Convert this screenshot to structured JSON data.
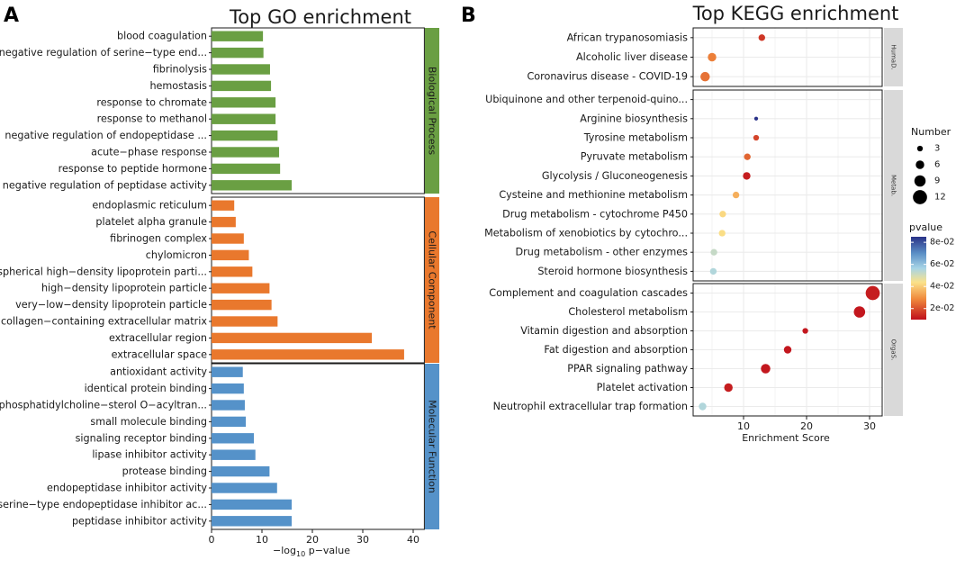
{
  "panel_labels": {
    "a": "A",
    "b": "B"
  },
  "colors": {
    "bp": "#6a9f43",
    "cc": "#e9782d",
    "mf": "#5592c9",
    "strip_bg": "#d9d9d9",
    "grid": "#ebebeb"
  },
  "chart_data": [
    {
      "type": "bar",
      "orientation": "horizontal",
      "title": "Top GO enrichment",
      "xlabel_prefix": "−log",
      "xlabel_sub": "10",
      "xlabel_suffix": " p−value",
      "xlim": [
        0,
        44
      ],
      "xticks": [
        0,
        10,
        20,
        30,
        40
      ],
      "groups": [
        {
          "name": "Biological Process",
          "color": "#6a9f43",
          "categories": [
            "blood coagulation",
            "negative regulation of serine−type end...",
            "fibrinolysis",
            "hemostasis",
            "response to chromate",
            "response to methanol",
            "negative regulation of endopeptidase ...",
            "acute−phase response",
            "response to peptide hormone",
            "negative regulation of peptidase activity"
          ],
          "values": [
            10.2,
            10.3,
            11.6,
            11.8,
            12.7,
            12.7,
            13.1,
            13.4,
            13.6,
            15.9
          ]
        },
        {
          "name": "Cellular Component",
          "color": "#e9782d",
          "categories": [
            "endoplasmic reticulum",
            "platelet alpha granule",
            "fibrinogen complex",
            "chylomicron",
            "spherical high−density lipoprotein parti...",
            "high−density lipoprotein particle",
            "very−low−density lipoprotein particle",
            "collagen−containing extracellular matrix",
            "extracellular region",
            "extracellular space"
          ],
          "values": [
            4.5,
            4.8,
            6.4,
            7.4,
            8.1,
            11.5,
            11.9,
            13.1,
            31.8,
            38.2
          ]
        },
        {
          "name": "Molecular Function",
          "color": "#5592c9",
          "categories": [
            "antioxidant activity",
            "identical protein binding",
            "phosphatidylcholine−sterol O−acyltran...",
            "small molecule binding",
            "signaling receptor binding",
            "lipase inhibitor activity",
            "protease binding",
            "endopeptidase inhibitor activity",
            "serine−type endopeptidase inhibitor ac...",
            "peptidase inhibitor activity"
          ],
          "values": [
            6.2,
            6.4,
            6.6,
            6.8,
            8.4,
            8.7,
            11.5,
            13.0,
            15.9,
            15.9
          ]
        }
      ]
    },
    {
      "type": "scatter",
      "title": "Top KEGG enrichment",
      "xlabel": "Enrichment Score",
      "xlim": [
        2,
        32
      ],
      "xticks": [
        10,
        20,
        30
      ],
      "facets": [
        {
          "name": "HumaD.",
          "categories": [
            "African trypanosomiasis",
            "Alcoholic liver disease",
            "Coronavirus disease - COVID-19"
          ],
          "x": [
            12.9,
            5.0,
            3.9
          ],
          "number": [
            4,
            6,
            7
          ],
          "pvalue": [
            0.016,
            0.027,
            0.025
          ]
        },
        {
          "name": "Metab.",
          "categories": [
            "Ubiquinone and other terpenoid-quino...",
            "Arginine biosynthesis",
            "Tyrosine metabolism",
            "Pyruvate metabolism",
            "Glycolysis / Gluconeogenesis",
            "Cysteine and methionine metabolism",
            "Drug metabolism - cytochrome P450",
            "Metabolism of xenobiotics by cytochro...",
            "Drug metabolism - other enzymes",
            "Steroid hormone biosynthesis"
          ],
          "x": [
            null,
            12.0,
            12.0,
            10.6,
            10.5,
            8.8,
            6.7,
            6.6,
            5.3,
            5.2
          ],
          "number": [
            null,
            1,
            3,
            4,
            5,
            4,
            4,
            4,
            4,
            4
          ],
          "pvalue": [
            null,
            0.085,
            0.018,
            0.023,
            0.012,
            0.035,
            0.042,
            0.043,
            0.052,
            0.055
          ]
        },
        {
          "name": "OrgaS.",
          "categories": [
            "Complement and coagulation cascades",
            "Cholesterol metabolism",
            "Vitamin digestion and absorption",
            "Fat digestion and absorption",
            "PPAR signaling pathway",
            "Platelet activation",
            "Neutrophil extracellular trap formation"
          ],
          "x": [
            30.5,
            28.4,
            19.8,
            17.0,
            13.5,
            7.6,
            3.5
          ],
          "number": [
            12,
            9,
            3,
            5,
            7,
            6,
            5
          ],
          "pvalue": [
            0.012,
            0.011,
            0.011,
            0.011,
            0.011,
            0.012,
            0.055
          ]
        }
      ],
      "size_legend": {
        "title": "Number",
        "values": [
          3,
          6,
          9,
          12
        ],
        "labels": [
          "3",
          "6",
          "9",
          "12"
        ]
      },
      "color_legend": {
        "title": "pvalue",
        "range": [
          0.01,
          0.085
        ],
        "ticks": [
          0.02,
          0.04,
          0.06,
          0.08
        ],
        "labels": [
          "2e-02",
          "4e-02",
          "6e-02",
          "8e-02"
        ]
      }
    }
  ]
}
